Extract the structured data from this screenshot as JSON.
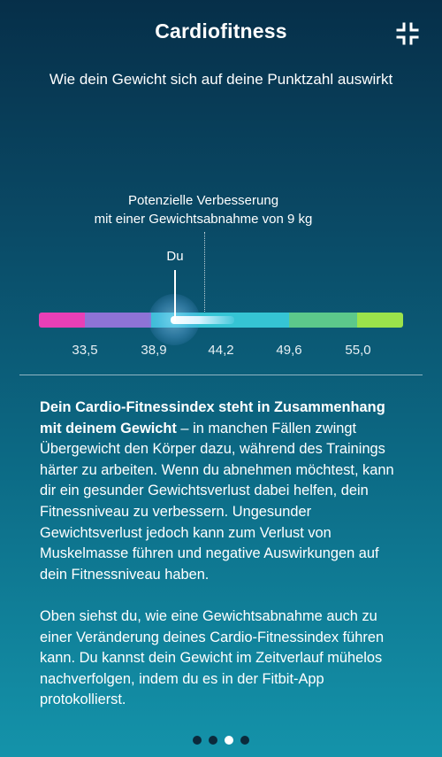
{
  "header": {
    "title": "Cardiofitness",
    "collapse_icon": "collapse-icon"
  },
  "subtitle": "Wie dein Gewicht sich auf deine Punktzahl auswirkt",
  "chart": {
    "improvement_label_line1": "Potenzielle Verbesserung",
    "improvement_label_line2": "mit einer Gewichtsabnahme von 9 kg",
    "you_label": "Du",
    "ticks": [
      "33,5",
      "38,9",
      "44,2",
      "49,6",
      "55,0"
    ],
    "segment_colors": [
      "#e83fb6",
      "#8e73d6",
      "#35c4d4",
      "#5cc88b",
      "#9be34b"
    ]
  },
  "body": {
    "p1_bold": "Dein Cardio-Fitnessindex steht in Zusammenhang mit deinem Gewicht",
    "p1_rest": " – in manchen Fällen zwingt Übergewicht den Körper dazu, während des Trainings härter zu arbeiten. Wenn du abnehmen möchtest, kann dir ein gesunder Gewichtsverlust dabei helfen, dein Fitnessniveau zu verbessern. Ungesunder Gewichtsverlust jedoch kann zum Verlust von Muskelmasse führen und negative Auswirkungen auf dein Fitnessniveau haben.",
    "p2": "Oben siehst du, wie eine Gewichtsabnahme auch zu einer Veränderung deines Cardio-Fitnessindex führen kann. Du kannst dein Gewicht im Zeitverlauf mühelos nachverfolgen, indem du es in der Fitbit-App protokollierst."
  },
  "pagination": {
    "total": 4,
    "active": 3
  }
}
